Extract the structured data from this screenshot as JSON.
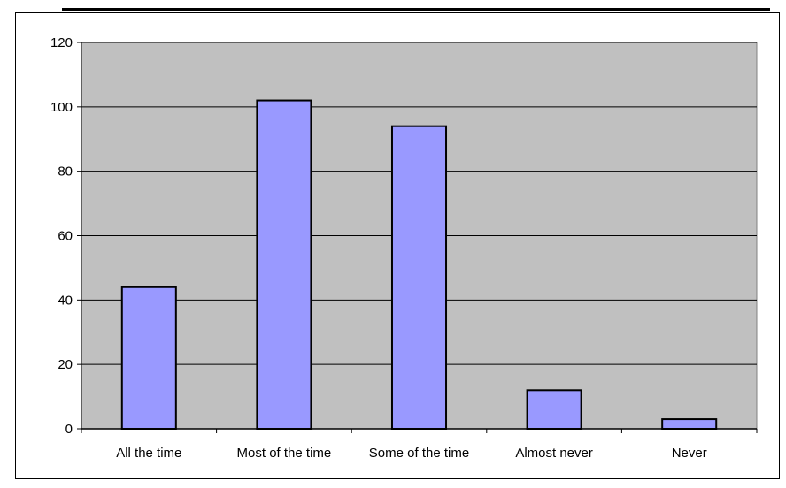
{
  "chart_data": {
    "type": "bar",
    "title": "",
    "xlabel": "",
    "ylabel": "",
    "categories": [
      "All the time",
      "Most of the time",
      "Some of the time",
      "Almost never",
      "Never"
    ],
    "values": [
      44,
      102,
      94,
      12,
      3
    ],
    "ylim": [
      0,
      120
    ],
    "yticks": [
      0,
      20,
      40,
      60,
      80,
      100,
      120
    ],
    "grid": true,
    "legend": "none",
    "colors": {
      "bar_fill": "#9999ff",
      "bar_stroke": "#000000",
      "plot_background": "#c0c0c0",
      "gridline": "#000000"
    }
  }
}
